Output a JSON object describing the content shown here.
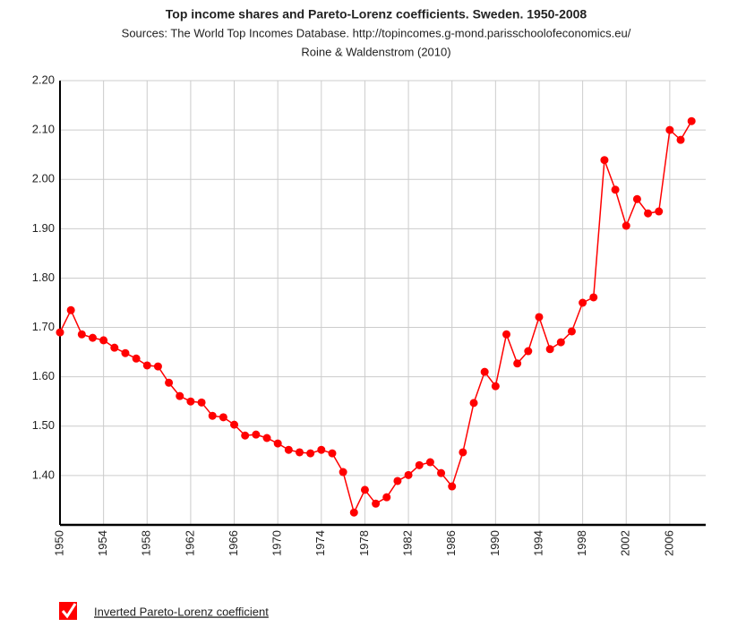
{
  "chart_data": {
    "type": "line",
    "title": "Top income shares and Pareto-Lorenz coefficients. Sweden. 1950-2008",
    "subtitle": [
      "Sources: The World Top Incomes Database. http://topincomes.g-mond.parisschoolofeconomics.eu/",
      "Roine & Waldenstrom (2010)"
    ],
    "x": [
      1950,
      1951,
      1952,
      1953,
      1954,
      1955,
      1956,
      1957,
      1958,
      1959,
      1960,
      1961,
      1962,
      1963,
      1964,
      1965,
      1966,
      1967,
      1968,
      1969,
      1970,
      1971,
      1972,
      1973,
      1974,
      1975,
      1976,
      1977,
      1978,
      1979,
      1980,
      1981,
      1982,
      1983,
      1984,
      1985,
      1986,
      1987,
      1988,
      1989,
      1990,
      1991,
      1992,
      1993,
      1994,
      1995,
      1996,
      1997,
      1998,
      1999,
      2000,
      2001,
      2002,
      2003,
      2004,
      2005,
      2006,
      2007,
      2008
    ],
    "series": [
      {
        "name": "Inverted Pareto-Lorenz coefficient",
        "color": "#ff0000",
        "values": [
          1.69,
          1.735,
          1.686,
          1.679,
          1.674,
          1.659,
          1.648,
          1.637,
          1.623,
          1.621,
          1.588,
          1.561,
          1.55,
          1.548,
          1.521,
          1.518,
          1.503,
          1.481,
          1.483,
          1.476,
          1.465,
          1.452,
          1.447,
          1.445,
          1.452,
          1.445,
          1.407,
          1.325,
          1.371,
          1.343,
          1.356,
          1.389,
          1.401,
          1.421,
          1.427,
          1.405,
          1.378,
          1.447,
          1.547,
          1.61,
          1.581,
          1.686,
          1.627,
          1.652,
          1.721,
          1.656,
          1.67,
          1.692,
          1.75,
          1.761,
          2.039,
          1.979,
          1.906,
          1.96,
          1.931,
          1.935,
          2.1,
          2.08,
          2.118
        ]
      }
    ],
    "xlim": [
      1950,
      2009.3
    ],
    "xticks": [
      1950,
      1954,
      1958,
      1962,
      1966,
      1970,
      1974,
      1978,
      1982,
      1986,
      1990,
      1994,
      1998,
      2002,
      2006
    ],
    "ylim": [
      1.3,
      2.2
    ],
    "yticks": [
      {
        "value": 1.4,
        "label": "1.40"
      },
      {
        "value": 1.5,
        "label": "1.50"
      },
      {
        "value": 1.6,
        "label": "1.60"
      },
      {
        "value": 1.7,
        "label": "1.70"
      },
      {
        "value": 1.8,
        "label": "1.80"
      },
      {
        "value": 1.9,
        "label": "1.90"
      },
      {
        "value": 2.0,
        "label": "2.00"
      },
      {
        "value": 2.1,
        "label": "2.10"
      },
      {
        "value": 2.2,
        "label": "2.20"
      }
    ],
    "grid": true
  }
}
